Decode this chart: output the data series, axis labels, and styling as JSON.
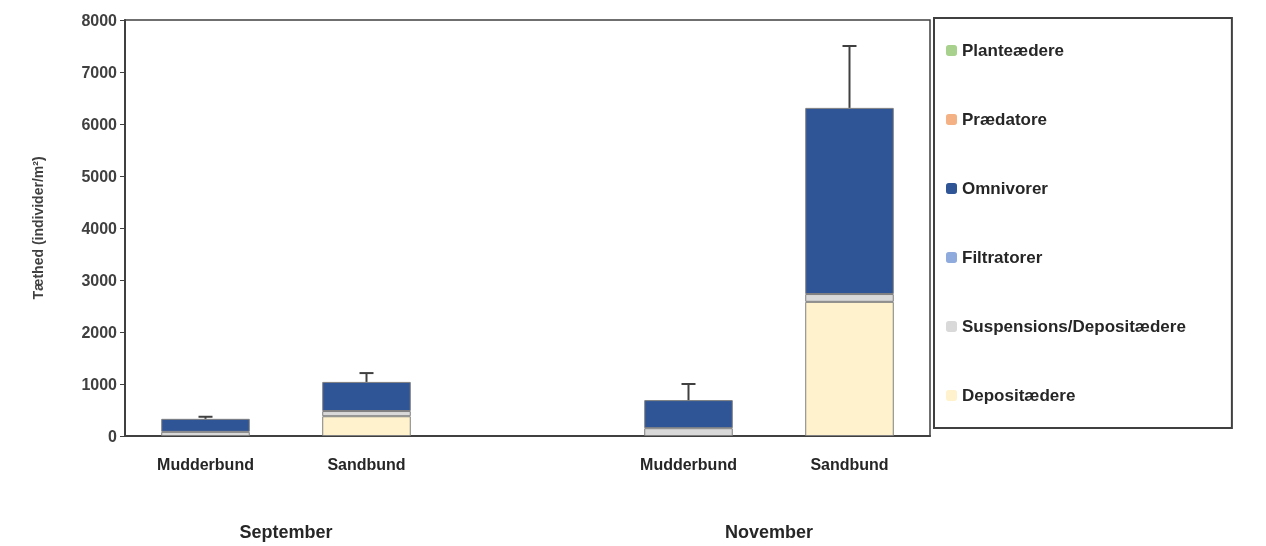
{
  "chart_data": {
    "type": "bar",
    "stacked": true,
    "ylabel": "Tæthed (individer/m²)",
    "categories": [
      "Mudderbund",
      "Sandbund",
      null,
      "Mudderbund",
      "Sandbund"
    ],
    "annotations": [
      "September",
      "November"
    ],
    "series": [
      {
        "name": "Depositædere",
        "color": "#fff2cc",
        "values": [
          0,
          380,
          null,
          0,
          2580
        ]
      },
      {
        "name": "Suspensions/Depositædere",
        "color": "#d9d9d9",
        "values": [
          80,
          100,
          null,
          150,
          150
        ]
      },
      {
        "name": "Filtratorer",
        "color": "#8faadc",
        "values": [
          0,
          0,
          null,
          0,
          0
        ]
      },
      {
        "name": "Omnivorer",
        "color": "#2f5597",
        "values": [
          250,
          560,
          null,
          540,
          3580
        ],
        "errors": [
          40,
          170,
          null,
          310,
          1190
        ]
      },
      {
        "name": "Prædatore",
        "color": "#f4b183",
        "values": [
          0,
          0,
          null,
          0,
          0
        ]
      },
      {
        "name": "Planteædere",
        "color": "#a9d18e",
        "values": [
          0,
          0,
          null,
          0,
          0
        ]
      }
    ],
    "ylim": [
      0,
      8000
    ],
    "yticks": [
      0,
      1000,
      2000,
      3000,
      4000,
      5000,
      6000,
      7000,
      8000
    ],
    "grid": false,
    "legend": "right"
  }
}
